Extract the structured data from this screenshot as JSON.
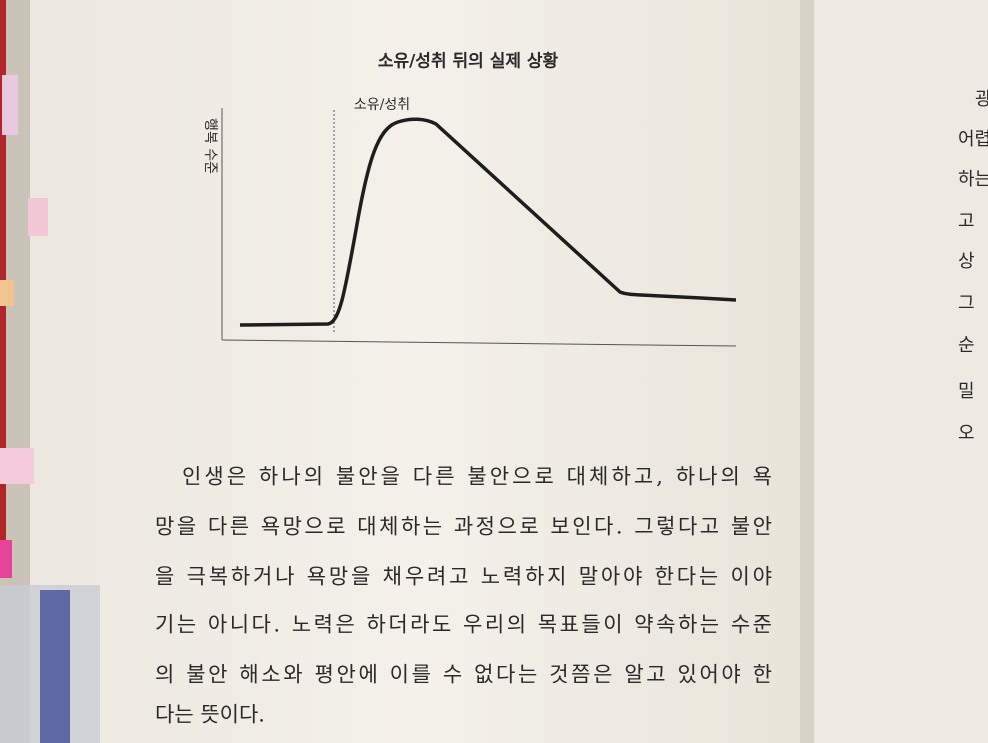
{
  "figure": {
    "title": "소유/성취 뒤의 실제 상황",
    "y_label": "행복 수준",
    "annotation": "소유/성취"
  },
  "paragraph": [
    "인생은 하나의 불안을 다른 불안으로 대체하고, 하나의 욕",
    "망을 다른 욕망으로 대체하는 과정으로 보인다. 그렇다고 불안",
    "을 극복하거나 욕망을 채우려고 노력하지 말아야 한다는 이야",
    "기는 아니다. 노력은 하더라도 우리의 목표들이 약속하는 수준",
    "의 불안 해소와 평안에 이를 수 없다는 것쯤은 알고 있어야 한",
    "다는 뜻이다."
  ],
  "next_page": [
    "광",
    "어렵",
    "하는",
    "고",
    "상",
    "그",
    "순",
    "밀",
    "오"
  ]
}
